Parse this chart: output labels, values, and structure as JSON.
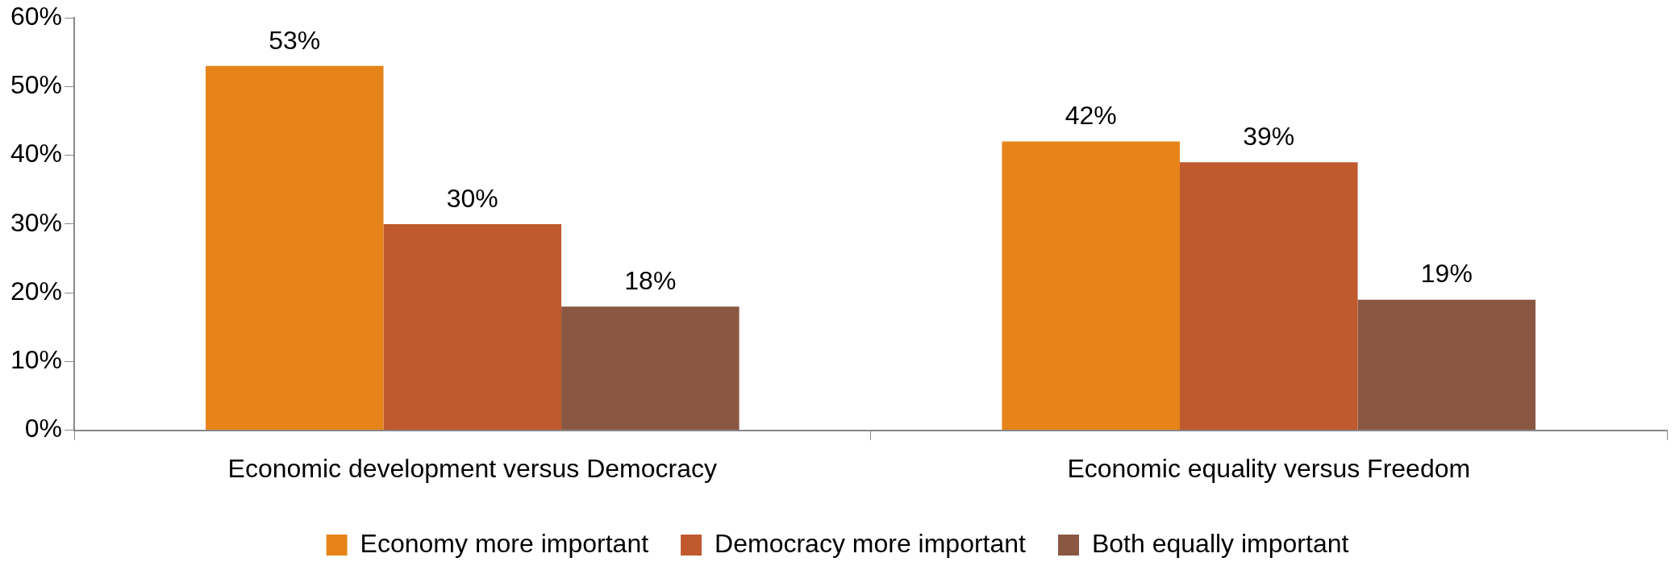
{
  "chart_data": {
    "type": "bar",
    "categories": [
      "Economic development versus Democracy",
      "Economic equality versus Freedom"
    ],
    "series": [
      {
        "name": "Economy more important",
        "color": "#e6841a",
        "values": [
          53,
          42
        ],
        "value_labels": [
          "53%",
          "42%"
        ]
      },
      {
        "name": "Democracy more important",
        "color": "#bf592e",
        "values": [
          30,
          39
        ],
        "value_labels": [
          "30%",
          "39%"
        ]
      },
      {
        "name": "Both equally important",
        "color": "#8a5842",
        "values": [
          18,
          19
        ],
        "value_labels": [
          "18%",
          "19%"
        ]
      }
    ],
    "ylim": [
      0,
      60
    ],
    "yticks": [
      {
        "value": 0,
        "label": "0%"
      },
      {
        "value": 10,
        "label": "10%"
      },
      {
        "value": 20,
        "label": "20%"
      },
      {
        "value": 30,
        "label": "30%"
      },
      {
        "value": 40,
        "label": "40%"
      },
      {
        "value": 50,
        "label": "50%"
      },
      {
        "value": 60,
        "label": "60%"
      }
    ],
    "legend": "bottom"
  }
}
